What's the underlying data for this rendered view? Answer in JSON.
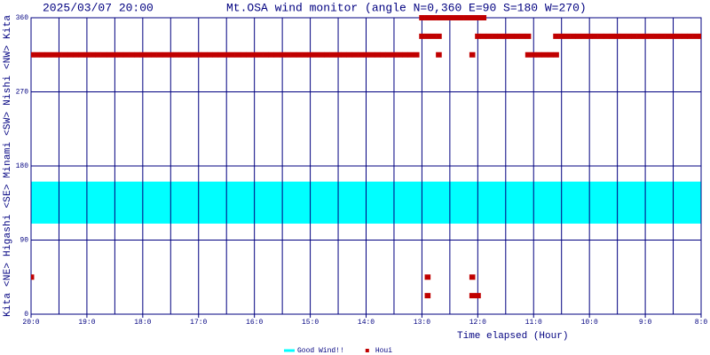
{
  "chart_data": {
    "type": "scatter",
    "timestamp": "2025/03/07 20:00",
    "title": "Mt.OSA wind monitor (angle N=0,360 E=90 S=180 W=270)",
    "y_label": "Kita <NE> Higashi <SE> Minami <SW> Nishi <NW> Kita",
    "x_label": "Time elapsed (Hour)",
    "xlim": [
      20,
      8
    ],
    "xticks": [
      {
        "value": 20,
        "label": "20:0"
      },
      {
        "value": 19,
        "label": "19:0"
      },
      {
        "value": 18,
        "label": "18:0"
      },
      {
        "value": 17,
        "label": "17:0"
      },
      {
        "value": 16,
        "label": "16:0"
      },
      {
        "value": 15,
        "label": "15:0"
      },
      {
        "value": 14,
        "label": "14:0"
      },
      {
        "value": 13,
        "label": "13:0"
      },
      {
        "value": 12,
        "label": "12:0"
      },
      {
        "value": 11,
        "label": "11:0"
      },
      {
        "value": 10,
        "label": "10:0"
      },
      {
        "value": 9,
        "label": "9:0"
      },
      {
        "value": 8,
        "label": "8:0"
      }
    ],
    "x_minor_ticks": [
      19.5,
      18.5,
      17.5,
      16.5,
      15.5,
      14.5,
      13.5,
      12.5,
      11.5,
      10.5,
      9.5,
      8.5
    ],
    "ylim": [
      0,
      360
    ],
    "yticks": [
      0,
      90,
      180,
      270,
      360
    ],
    "grid": true,
    "grid_color": "#000080",
    "series": [
      {
        "name": "Good Wind!!",
        "type": "band",
        "color": "#00ffff",
        "values": [
          110,
          161
        ]
      },
      {
        "name": "Houi",
        "color": "#c00000",
        "x": [
          20,
          19.9,
          19.8,
          19.7,
          19.6,
          19.5,
          19.4,
          19.3,
          19.2,
          19.1,
          19,
          18.9,
          18.8,
          18.7,
          18.6,
          18.5,
          18.4,
          18.3,
          18.2,
          18.1,
          18,
          17.9,
          17.8,
          17.7,
          17.6,
          17.5,
          17.4,
          17.3,
          17.2,
          17.1,
          17,
          16.9,
          16.8,
          16.7,
          16.6,
          16.5,
          16.4,
          16.3,
          16.2,
          16.1,
          16,
          15.9,
          15.8,
          15.7,
          15.6,
          15.5,
          15.4,
          15.3,
          15.2,
          15.1,
          15,
          14.9,
          14.8,
          14.7,
          14.6,
          14.5,
          14.4,
          14.3,
          14.2,
          14.1,
          14,
          13.9,
          13.8,
          13.7,
          13.6,
          13.5,
          13.4,
          13.3,
          13.2,
          13.1,
          12.7,
          12.1,
          11.1,
          11,
          10.9,
          10.8,
          10.7,
          10.6,
          13,
          12.9,
          12.8,
          12.7,
          12.6,
          12.5,
          12.4,
          12.3,
          12.2,
          12.1,
          12,
          11.9,
          13,
          12.9,
          12.8,
          12.7,
          12,
          11.9,
          11.8,
          11.7,
          11.6,
          11.5,
          11.4,
          11.3,
          11.2,
          11.1,
          10.6,
          10.5,
          10.4,
          10.3,
          10.2,
          10.1,
          10,
          9.9,
          9.8,
          9.7,
          9.6,
          9.5,
          9.4,
          9.3,
          9.2,
          9.1,
          9,
          8.9,
          8.8,
          8.7,
          8.6,
          8.5,
          8.4,
          8.3,
          8.2,
          8.1,
          8,
          20,
          12.9,
          12.1,
          12.9,
          12.1,
          12
        ],
        "values": [
          315,
          315,
          315,
          315,
          315,
          315,
          315,
          315,
          315,
          315,
          315,
          315,
          315,
          315,
          315,
          315,
          315,
          315,
          315,
          315,
          315,
          315,
          315,
          315,
          315,
          315,
          315,
          315,
          315,
          315,
          315,
          315,
          315,
          315,
          315,
          315,
          315,
          315,
          315,
          315,
          315,
          315,
          315,
          315,
          315,
          315,
          315,
          315,
          315,
          315,
          315,
          315,
          315,
          315,
          315,
          315,
          315,
          315,
          315,
          315,
          315,
          315,
          315,
          315,
          315,
          315,
          315,
          315,
          315,
          315,
          315,
          315,
          315,
          315,
          315,
          315,
          315,
          315,
          360,
          360,
          360,
          360,
          360,
          360,
          360,
          360,
          360,
          360,
          360,
          360,
          337.5,
          337.5,
          337.5,
          337.5,
          337.5,
          337.5,
          337.5,
          337.5,
          337.5,
          337.5,
          337.5,
          337.5,
          337.5,
          337.5,
          337.5,
          337.5,
          337.5,
          337.5,
          337.5,
          337.5,
          337.5,
          337.5,
          337.5,
          337.5,
          337.5,
          337.5,
          337.5,
          337.5,
          337.5,
          337.5,
          337.5,
          337.5,
          337.5,
          337.5,
          337.5,
          337.5,
          337.5,
          337.5,
          337.5,
          337.5,
          337.5,
          45,
          45,
          45,
          22.5,
          22.5,
          22.5
        ]
      }
    ]
  }
}
